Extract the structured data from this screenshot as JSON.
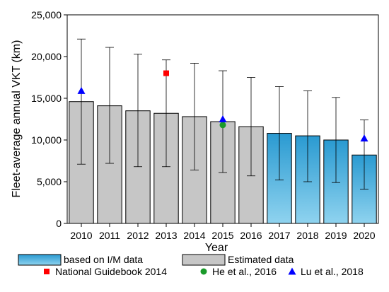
{
  "chart_data": {
    "type": "bar",
    "title": "",
    "xlabel": "Year",
    "ylabel": "Fleet-average annual VKT (km)",
    "ylim": [
      0,
      25000
    ],
    "yticks": [
      0,
      5000,
      10000,
      15000,
      20000,
      25000
    ],
    "ytick_labels": [
      "0",
      "5,000",
      "10,000",
      "15,000",
      "20,000",
      "25,000"
    ],
    "grid": false,
    "legend_position": "bottom",
    "categories": [
      "2010",
      "2011",
      "2012",
      "2013",
      "2014",
      "2015",
      "2016",
      "2017",
      "2018",
      "2019",
      "2020"
    ],
    "bars": {
      "values": [
        14600,
        14100,
        13500,
        13200,
        12800,
        12200,
        11600,
        10800,
        10500,
        10000,
        8200
      ],
      "error_low": [
        7100,
        7200,
        6800,
        6800,
        6400,
        6100,
        5700,
        5200,
        5000,
        4900,
        4100
      ],
      "error_high": [
        22100,
        21100,
        20300,
        19600,
        19200,
        18300,
        17500,
        16400,
        15900,
        15100,
        12400
      ],
      "source": [
        "estimated",
        "estimated",
        "estimated",
        "estimated",
        "estimated",
        "estimated",
        "estimated",
        "im",
        "im",
        "im",
        "im"
      ]
    },
    "series_styles": {
      "estimated": {
        "fill": "#c6c6c6",
        "stroke": "#000000"
      },
      "im": {
        "fill_top": "#2a9ad1",
        "fill_bottom": "#8fd3ef",
        "stroke": "#000000"
      }
    },
    "points": [
      {
        "name": "National Guidebook 2014",
        "marker": "square",
        "color": "#ff0000",
        "x": "2013",
        "y": 18000
      },
      {
        "name": "He et al., 2016",
        "marker": "circle",
        "color": "#1a9a2a",
        "x": "2015",
        "y": 11800
      },
      {
        "name": "Lu et al., 2018",
        "marker": "triangle",
        "color": "#0000ff",
        "x": "2010",
        "y": 15900
      },
      {
        "name": "Lu et al., 2018",
        "marker": "triangle",
        "color": "#0000ff",
        "x": "2015",
        "y": 12500
      },
      {
        "name": "Lu et al., 2018",
        "marker": "triangle",
        "color": "#0000ff",
        "x": "2020",
        "y": 10200
      }
    ],
    "legend": [
      {
        "label": "based on I/M data",
        "kind": "im-swatch"
      },
      {
        "label": "Estimated data",
        "kind": "estimated-swatch"
      },
      {
        "label": "National Guidebook 2014",
        "kind": "square",
        "color": "#ff0000"
      },
      {
        "label": "He et al., 2016",
        "kind": "circle",
        "color": "#1a9a2a"
      },
      {
        "label": "Lu et al., 2018",
        "kind": "triangle",
        "color": "#0000ff"
      }
    ]
  }
}
